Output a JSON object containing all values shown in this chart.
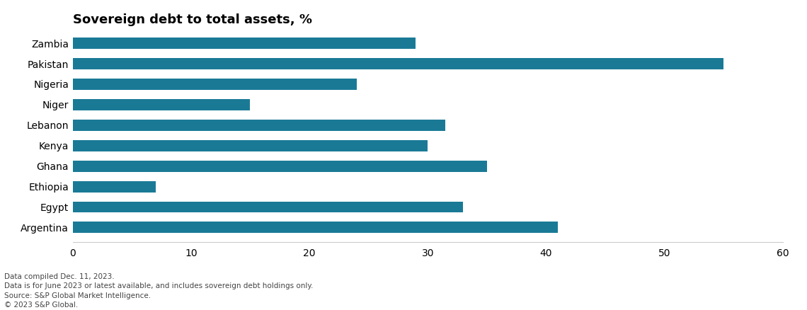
{
  "title": "Sovereign debt to total assets, %",
  "categories": [
    "Zambia",
    "Pakistan",
    "Nigeria",
    "Niger",
    "Lebanon",
    "Kenya",
    "Ghana",
    "Ethiopia",
    "Egypt",
    "Argentina"
  ],
  "values": [
    29.0,
    55.0,
    24.0,
    15.0,
    31.5,
    30.0,
    35.0,
    7.0,
    33.0,
    41.0
  ],
  "bar_color": "#1a7a96",
  "xlim": [
    0,
    60
  ],
  "xticks": [
    0,
    10,
    20,
    30,
    40,
    50,
    60
  ],
  "footnote_line1": "Data compiled Dec. 11, 2023.",
  "footnote_line2": "Data is for June 2023 or latest available, and includes sovereign debt holdings only.",
  "footnote_line3": "Source: S&P Global Market Intelligence.",
  "footnote_line4": "© 2023 S&P Global.",
  "footnote_color": "#444444",
  "footnote_fontsize": 7.5,
  "title_fontsize": 13,
  "label_fontsize": 10,
  "tick_fontsize": 10,
  "background_color": "#ffffff",
  "bar_height": 0.55
}
